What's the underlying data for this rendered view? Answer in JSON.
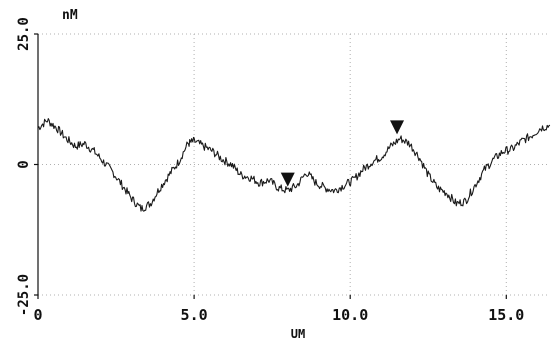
{
  "chart_data": {
    "type": "line",
    "title": "",
    "xlabel": "UM",
    "ylabel": "nM",
    "xlim": [
      0,
      16.4
    ],
    "ylim": [
      -25.0,
      25.0
    ],
    "x_ticks": [
      0,
      5.0,
      10.0,
      15.0
    ],
    "x_tick_labels": [
      "0",
      "5.0",
      "10.0",
      "15.0"
    ],
    "y_ticks": [
      -25.0,
      0,
      25.0
    ],
    "y_tick_labels": [
      "-25.0",
      "0",
      "25.0"
    ],
    "grid": true,
    "line_color": "#1a1a1a",
    "grid_color": "#b0b0b0",
    "series": [
      {
        "x": [
          0.0,
          0.3,
          0.6,
          0.9,
          1.2,
          1.5,
          1.8,
          2.1,
          2.4,
          2.7,
          3.0,
          3.3,
          3.6,
          3.9,
          4.2,
          4.5,
          4.8,
          5.0,
          5.3,
          5.6,
          5.9,
          6.2,
          6.5,
          6.8,
          7.1,
          7.4,
          7.7,
          8.0,
          8.3,
          8.6,
          8.9,
          9.2,
          9.5,
          9.8,
          10.1,
          10.4,
          10.7,
          11.0,
          11.3,
          11.6,
          11.9,
          12.2,
          12.5,
          12.8,
          13.1,
          13.4,
          13.7,
          14.0,
          14.3,
          14.6,
          14.9,
          15.2,
          15.5,
          15.8,
          16.1,
          16.4
        ],
        "y": [
          7.0,
          8.5,
          7.0,
          5.0,
          3.5,
          4.0,
          2.5,
          0.5,
          -1.5,
          -4.0,
          -6.5,
          -8.5,
          -7.5,
          -4.5,
          -2.0,
          0.5,
          4.0,
          4.5,
          3.5,
          2.5,
          1.0,
          0.0,
          -2.0,
          -2.5,
          -3.5,
          -3.0,
          -4.5,
          -5.0,
          -4.0,
          -1.5,
          -3.5,
          -4.5,
          -5.0,
          -4.0,
          -3.0,
          -1.0,
          0.5,
          1.5,
          3.5,
          5.0,
          4.0,
          1.5,
          -2.0,
          -4.5,
          -5.5,
          -7.5,
          -7.0,
          -4.0,
          -1.0,
          1.0,
          2.5,
          3.0,
          4.5,
          5.5,
          7.0,
          7.5
        ]
      }
    ],
    "markers": [
      {
        "x": 8.0,
        "y": -5.0
      },
      {
        "x": 11.5,
        "y": 5.0
      }
    ]
  }
}
